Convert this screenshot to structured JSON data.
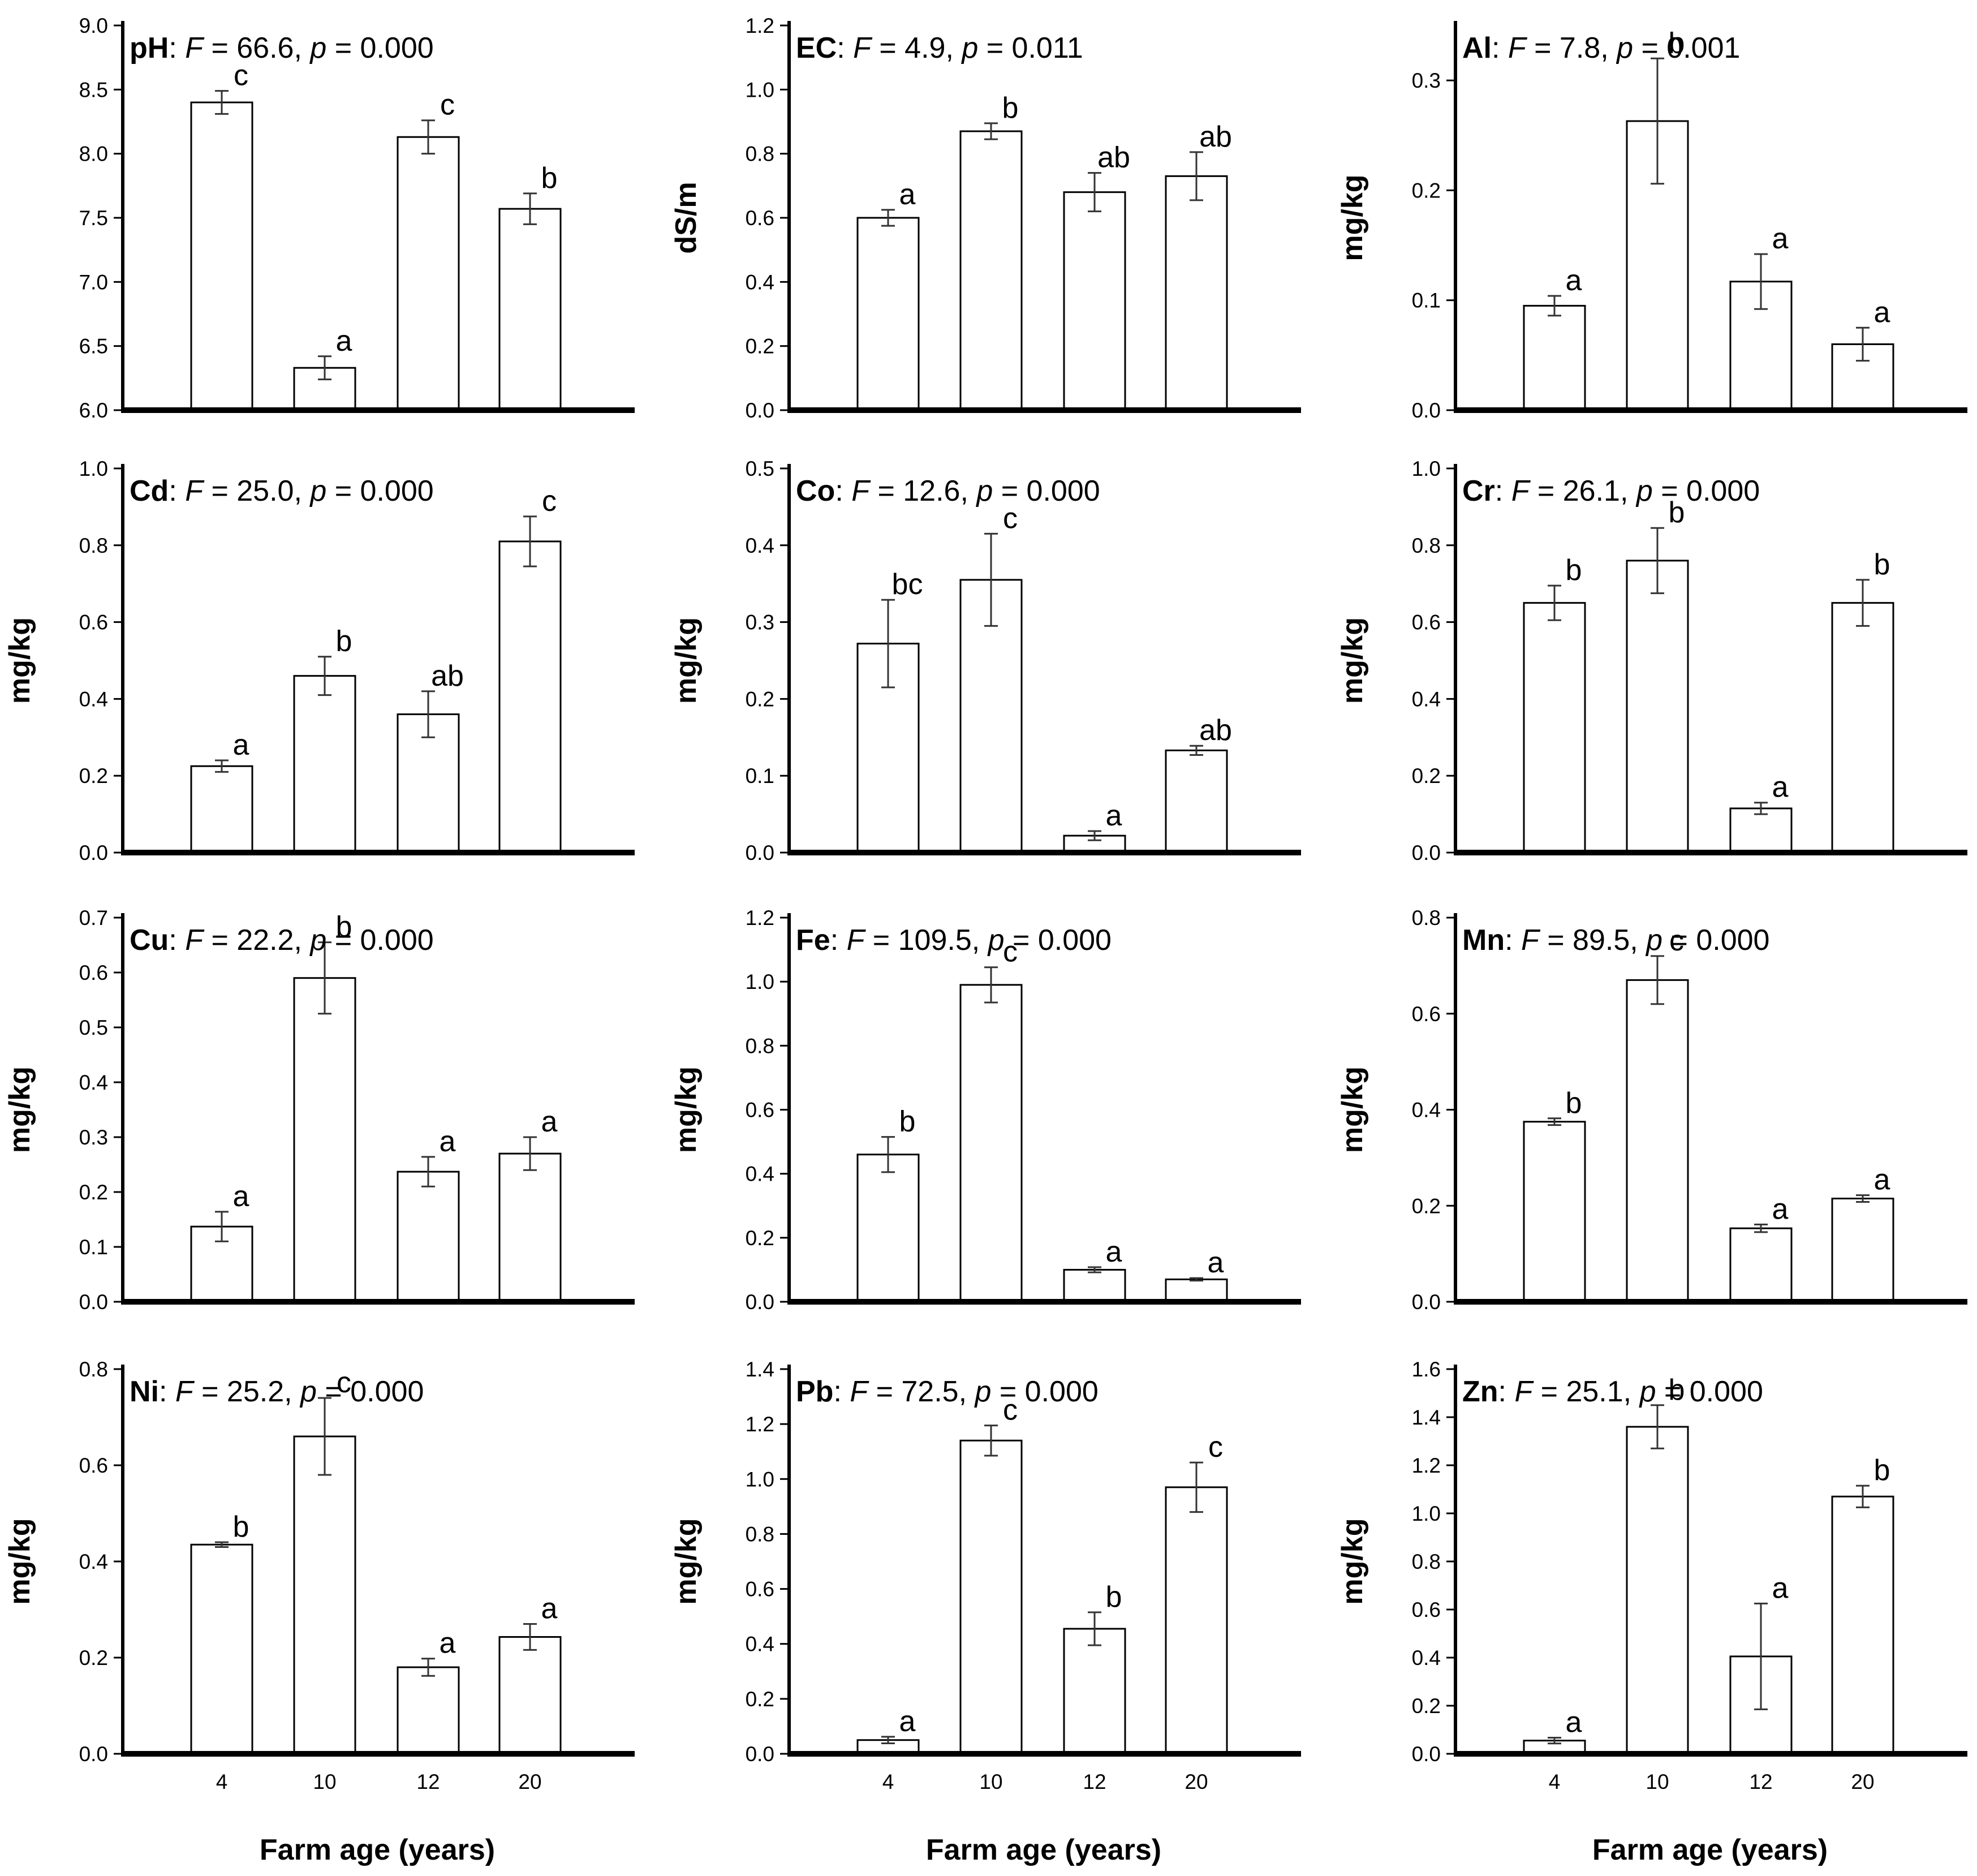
{
  "colors": {
    "bar_fill": "#ffffff",
    "stroke": "#000000",
    "error_bar": "#333333"
  },
  "chart_data": [
    {
      "type": "bar",
      "element": "pH",
      "stat": "F = 66.6, p = 0.000",
      "fval": "66.6",
      "pval": "0.000",
      "ylabel": "",
      "categories": [
        "4",
        "10",
        "12",
        "20"
      ],
      "values": [
        8.4,
        6.33,
        8.13,
        7.57
      ],
      "errors": [
        0.09,
        0.09,
        0.13,
        0.12
      ],
      "letters": [
        "c",
        "a",
        "c",
        "b"
      ],
      "ylim": [
        6.0,
        9.0
      ],
      "yticks": [
        "6.0",
        "6.5",
        "7.0",
        "7.5",
        "8.0",
        "8.5",
        "9.0"
      ],
      "xlabel": ""
    },
    {
      "type": "bar",
      "element": "EC",
      "stat": "F = 4.9, p = 0.011",
      "fval": "4.9",
      "pval": "0.011",
      "ylabel": "dS/m",
      "categories": [
        "4",
        "10",
        "12",
        "20"
      ],
      "values": [
        0.6,
        0.87,
        0.68,
        0.73
      ],
      "errors": [
        0.025,
        0.025,
        0.06,
        0.075
      ],
      "letters": [
        "a",
        "b",
        "ab",
        "ab"
      ],
      "ylim": [
        0.0,
        1.2
      ],
      "yticks": [
        "0.0",
        "0.2",
        "0.4",
        "0.6",
        "0.8",
        "1.0",
        "1.2"
      ],
      "xlabel": ""
    },
    {
      "type": "bar",
      "element": "Al",
      "stat": "F = 7.8, p = 0.001",
      "fval": "7.8",
      "pval": "0.001",
      "ylabel": "mg/kg",
      "categories": [
        "4",
        "10",
        "12",
        "20"
      ],
      "values": [
        0.095,
        0.263,
        0.117,
        0.06
      ],
      "errors": [
        0.009,
        0.057,
        0.025,
        0.015
      ],
      "letters": [
        "a",
        "b",
        "a",
        "a"
      ],
      "ylim": [
        0.0,
        0.35
      ],
      "yticks": [
        "0.0",
        "0.1",
        "0.2",
        "0.3"
      ],
      "xlabel": ""
    },
    {
      "type": "bar",
      "element": "Cd",
      "stat": "F = 25.0, p = 0.000",
      "fval": "25.0",
      "pval": "0.000",
      "ylabel": "mg/kg",
      "categories": [
        "4",
        "10",
        "12",
        "20"
      ],
      "values": [
        0.225,
        0.46,
        0.36,
        0.81
      ],
      "errors": [
        0.015,
        0.05,
        0.06,
        0.065
      ],
      "letters": [
        "a",
        "b",
        "ab",
        "c"
      ],
      "ylim": [
        0.0,
        1.0
      ],
      "yticks": [
        "0.0",
        "0.2",
        "0.4",
        "0.6",
        "0.8",
        "1.0"
      ],
      "xlabel": ""
    },
    {
      "type": "bar",
      "element": "Co",
      "stat": "F = 12.6, p = 0.000",
      "fval": "12.6",
      "pval": "0.000",
      "ylabel": "mg/kg",
      "categories": [
        "4",
        "10",
        "12",
        "20"
      ],
      "values": [
        0.272,
        0.355,
        0.022,
        0.133
      ],
      "errors": [
        0.057,
        0.06,
        0.006,
        0.006
      ],
      "letters": [
        "bc",
        "c",
        "a",
        "ab"
      ],
      "ylim": [
        0.0,
        0.5
      ],
      "yticks": [
        "0.0",
        "0.1",
        "0.2",
        "0.3",
        "0.4",
        "0.5"
      ],
      "xlabel": ""
    },
    {
      "type": "bar",
      "element": "Cr",
      "stat": "F = 26.1, p = 0.000",
      "fval": "26.1",
      "pval": "0.000",
      "ylabel": "mg/kg",
      "categories": [
        "4",
        "10",
        "12",
        "20"
      ],
      "values": [
        0.65,
        0.76,
        0.115,
        0.65
      ],
      "errors": [
        0.045,
        0.085,
        0.015,
        0.06
      ],
      "letters": [
        "b",
        "b",
        "a",
        "b"
      ],
      "ylim": [
        0.0,
        1.0
      ],
      "yticks": [
        "0.0",
        "0.2",
        "0.4",
        "0.6",
        "0.8",
        "1.0"
      ],
      "xlabel": ""
    },
    {
      "type": "bar",
      "element": "Cu",
      "stat": "F = 22.2, p = 0.000",
      "fval": "22.2",
      "pval": "0.000",
      "ylabel": "mg/kg",
      "categories": [
        "4",
        "10",
        "12",
        "20"
      ],
      "values": [
        0.137,
        0.59,
        0.237,
        0.27
      ],
      "errors": [
        0.027,
        0.065,
        0.027,
        0.03
      ],
      "letters": [
        "a",
        "b",
        "a",
        "a"
      ],
      "ylim": [
        0.0,
        0.7
      ],
      "yticks": [
        "0.0",
        "0.1",
        "0.2",
        "0.3",
        "0.4",
        "0.5",
        "0.6",
        "0.7"
      ],
      "xlabel": ""
    },
    {
      "type": "bar",
      "element": "Fe",
      "stat": "F = 109.5, p = 0.000",
      "fval": "109.5",
      "pval": "0.000",
      "ylabel": "mg/kg",
      "categories": [
        "4",
        "10",
        "12",
        "20"
      ],
      "values": [
        0.46,
        0.99,
        0.1,
        0.07
      ],
      "errors": [
        0.055,
        0.055,
        0.008,
        0.004
      ],
      "letters": [
        "b",
        "c",
        "a",
        "a"
      ],
      "ylim": [
        0.0,
        1.2
      ],
      "yticks": [
        "0.0",
        "0.2",
        "0.4",
        "0.6",
        "0.8",
        "1.0",
        "1.2"
      ],
      "xlabel": ""
    },
    {
      "type": "bar",
      "element": "Mn",
      "stat": "F = 89.5, p = 0.000",
      "fval": "89.5",
      "pval": "0.000",
      "ylabel": "mg/kg",
      "categories": [
        "4",
        "10",
        "12",
        "20"
      ],
      "values": [
        0.375,
        0.67,
        0.153,
        0.215
      ],
      "errors": [
        0.007,
        0.05,
        0.008,
        0.007
      ],
      "letters": [
        "b",
        "c",
        "a",
        "a"
      ],
      "ylim": [
        0.0,
        0.8
      ],
      "yticks": [
        "0.0",
        "0.2",
        "0.4",
        "0.6",
        "0.8"
      ],
      "xlabel": ""
    },
    {
      "type": "bar",
      "element": "Ni",
      "stat": "F = 25.2, p = 0.000",
      "fval": "25.2",
      "pval": "0.000",
      "ylabel": "mg/kg",
      "categories": [
        "4",
        "10",
        "12",
        "20"
      ],
      "values": [
        0.435,
        0.66,
        0.18,
        0.243
      ],
      "errors": [
        0.005,
        0.08,
        0.018,
        0.027
      ],
      "letters": [
        "b",
        "c",
        "a",
        "a"
      ],
      "ylim": [
        0.0,
        0.8
      ],
      "yticks": [
        "0.0",
        "0.2",
        "0.4",
        "0.6",
        "0.8"
      ],
      "xlabel": "Farm age (years)"
    },
    {
      "type": "bar",
      "element": "Pb",
      "stat": "F = 72.5, p = 0.000",
      "fval": "72.5",
      "pval": "0.000",
      "ylabel": "mg/kg",
      "categories": [
        "4",
        "10",
        "12",
        "20"
      ],
      "values": [
        0.05,
        1.14,
        0.455,
        0.97
      ],
      "errors": [
        0.012,
        0.055,
        0.06,
        0.09
      ],
      "letters": [
        "a",
        "c",
        "b",
        "c"
      ],
      "ylim": [
        0.0,
        1.4
      ],
      "yticks": [
        "0.0",
        "0.2",
        "0.4",
        "0.6",
        "0.8",
        "1.0",
        "1.2",
        "1.4"
      ],
      "xlabel": "Farm age (years)"
    },
    {
      "type": "bar",
      "element": "Zn",
      "stat": "F = 25.1, p = 0.000",
      "fval": "25.1",
      "pval": "0.000",
      "ylabel": "mg/kg",
      "categories": [
        "4",
        "10",
        "12",
        "20"
      ],
      "values": [
        0.055,
        1.36,
        0.405,
        1.07
      ],
      "errors": [
        0.012,
        0.09,
        0.22,
        0.045
      ],
      "letters": [
        "a",
        "b",
        "a",
        "b"
      ],
      "ylim": [
        0.0,
        1.6
      ],
      "yticks": [
        "0.0",
        "0.2",
        "0.4",
        "0.6",
        "0.8",
        "1.0",
        "1.2",
        "1.4",
        "1.6"
      ],
      "xlabel": "Farm age (years)"
    }
  ]
}
